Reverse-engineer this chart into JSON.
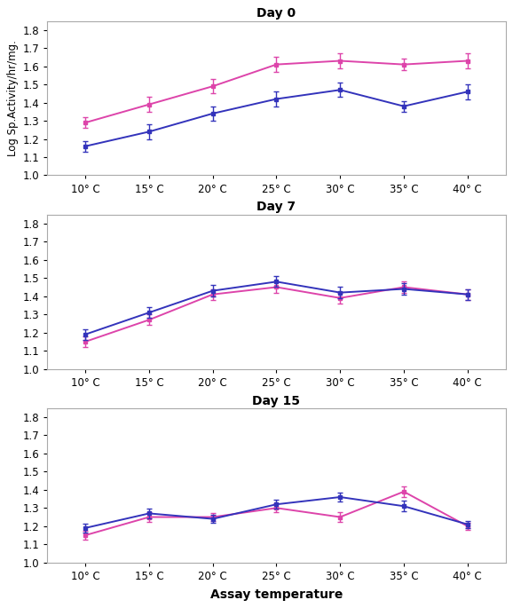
{
  "x_labels": [
    "10° C",
    "15° C",
    "20° C",
    "25° C",
    "30° C",
    "35° C",
    "40° C"
  ],
  "x_vals": [
    10,
    15,
    20,
    25,
    30,
    35,
    40
  ],
  "panels": [
    {
      "title": "Day 0",
      "blue_y": [
        1.16,
        1.24,
        1.34,
        1.42,
        1.47,
        1.38,
        1.46
      ],
      "blue_err": [
        0.03,
        0.04,
        0.04,
        0.04,
        0.04,
        0.03,
        0.04
      ],
      "pink_y": [
        1.29,
        1.39,
        1.49,
        1.61,
        1.63,
        1.61,
        1.63
      ],
      "pink_err": [
        0.03,
        0.04,
        0.04,
        0.04,
        0.04,
        0.03,
        0.04
      ]
    },
    {
      "title": "Day 7",
      "blue_y": [
        1.19,
        1.31,
        1.43,
        1.48,
        1.42,
        1.44,
        1.41
      ],
      "blue_err": [
        0.03,
        0.03,
        0.03,
        0.03,
        0.03,
        0.03,
        0.03
      ],
      "pink_y": [
        1.15,
        1.27,
        1.41,
        1.45,
        1.39,
        1.45,
        1.41
      ],
      "pink_err": [
        0.03,
        0.03,
        0.03,
        0.03,
        0.03,
        0.03,
        0.03
      ]
    },
    {
      "title": "Day 15",
      "blue_y": [
        1.19,
        1.27,
        1.24,
        1.32,
        1.36,
        1.31,
        1.21
      ],
      "blue_err": [
        0.025,
        0.025,
        0.02,
        0.025,
        0.025,
        0.03,
        0.02
      ],
      "pink_y": [
        1.15,
        1.25,
        1.25,
        1.3,
        1.25,
        1.39,
        1.2
      ],
      "pink_err": [
        0.025,
        0.025,
        0.02,
        0.025,
        0.025,
        0.03,
        0.02
      ]
    }
  ],
  "blue_color": "#3333bb",
  "pink_color": "#dd44aa",
  "ylabel": "Log Sp.Activity/hr/mg.",
  "xlabel": "Assay temperature",
  "ylim": [
    1.0,
    1.85
  ],
  "yticks": [
    1.0,
    1.1,
    1.2,
    1.3,
    1.4,
    1.5,
    1.6,
    1.7,
    1.8
  ],
  "background_color": "#ffffff",
  "panel_bg": "#ffffff",
  "border_color": "#aaaaaa"
}
